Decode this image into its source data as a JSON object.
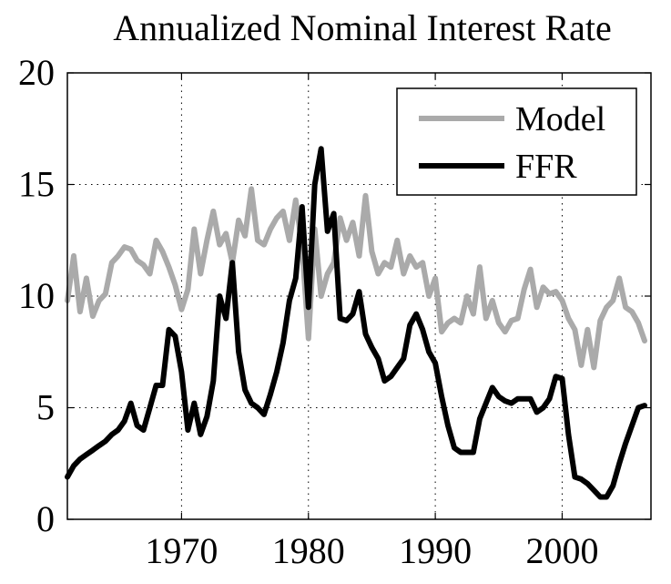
{
  "chart_data": {
    "type": "line",
    "title": "Annualized Nominal Interest Rate",
    "xlabel": "",
    "ylabel": "",
    "xlim": [
      1961,
      2007
    ],
    "ylim": [
      0,
      20
    ],
    "xticks": [
      1970,
      1980,
      1990,
      2000
    ],
    "yticks": [
      0,
      5,
      10,
      15,
      20
    ],
    "grid": true,
    "legend_position": "top-right",
    "series": [
      {
        "name": "Model",
        "color": "#aaaaaa",
        "x": [
          1961.0,
          1961.5,
          1962.0,
          1962.5,
          1963.0,
          1963.5,
          1964.0,
          1964.5,
          1965.0,
          1965.5,
          1966.0,
          1966.5,
          1967.0,
          1967.5,
          1968.0,
          1968.5,
          1969.0,
          1969.5,
          1970.0,
          1970.5,
          1971.0,
          1971.5,
          1972.0,
          1972.5,
          1973.0,
          1973.5,
          1974.0,
          1974.5,
          1975.0,
          1975.5,
          1976.0,
          1976.5,
          1977.0,
          1977.5,
          1978.0,
          1978.5,
          1979.0,
          1979.5,
          1980.0,
          1980.5,
          1981.0,
          1981.5,
          1982.0,
          1982.5,
          1983.0,
          1983.5,
          1984.0,
          1984.5,
          1985.0,
          1985.5,
          1986.0,
          1986.5,
          1987.0,
          1987.5,
          1988.0,
          1988.5,
          1989.0,
          1989.5,
          1990.0,
          1990.5,
          1991.0,
          1991.5,
          1992.0,
          1992.5,
          1993.0,
          1993.5,
          1994.0,
          1994.5,
          1995.0,
          1995.5,
          1996.0,
          1996.5,
          1997.0,
          1997.5,
          1998.0,
          1998.5,
          1999.0,
          1999.5,
          2000.0,
          2000.5,
          2001.0,
          2001.5,
          2002.0,
          2002.5,
          2003.0,
          2003.5,
          2004.0,
          2004.5,
          2005.0,
          2005.5,
          2006.0,
          2006.5
        ],
        "y": [
          9.8,
          11.8,
          9.3,
          10.8,
          9.1,
          9.8,
          10.1,
          11.5,
          11.8,
          12.2,
          12.1,
          11.6,
          11.4,
          11.0,
          12.5,
          12.0,
          11.3,
          10.5,
          9.4,
          10.3,
          13.0,
          11.0,
          12.5,
          13.8,
          12.3,
          12.8,
          11.5,
          13.4,
          12.7,
          14.8,
          12.5,
          12.3,
          13.0,
          13.5,
          13.8,
          12.5,
          14.3,
          12.2,
          8.1,
          13.0,
          10.0,
          11.0,
          11.5,
          13.5,
          12.5,
          13.3,
          11.8,
          14.5,
          12.0,
          11.0,
          11.5,
          11.3,
          12.5,
          11.0,
          11.8,
          11.3,
          11.5,
          10.0,
          10.8,
          8.4,
          8.8,
          9.0,
          8.8,
          10.0,
          9.2,
          11.3,
          9.0,
          9.8,
          8.8,
          8.4,
          8.9,
          9.0,
          10.3,
          11.2,
          9.5,
          10.4,
          10.1,
          10.2,
          9.8,
          9.0,
          8.5,
          6.9,
          8.5,
          6.8,
          8.9,
          9.5,
          9.8,
          10.8,
          9.5,
          9.3,
          8.8,
          8.0
        ]
      },
      {
        "name": "FFR",
        "color": "#000000",
        "x": [
          1961.0,
          1961.5,
          1962.0,
          1962.5,
          1963.0,
          1963.5,
          1964.0,
          1964.5,
          1965.0,
          1965.5,
          1966.0,
          1966.5,
          1967.0,
          1967.5,
          1968.0,
          1968.5,
          1969.0,
          1969.5,
          1970.0,
          1970.5,
          1971.0,
          1971.5,
          1972.0,
          1972.5,
          1973.0,
          1973.5,
          1974.0,
          1974.5,
          1975.0,
          1975.5,
          1976.0,
          1976.5,
          1977.0,
          1977.5,
          1978.0,
          1978.5,
          1979.0,
          1979.5,
          1980.0,
          1980.5,
          1981.0,
          1981.5,
          1982.0,
          1982.5,
          1983.0,
          1983.5,
          1984.0,
          1984.5,
          1985.0,
          1985.5,
          1986.0,
          1986.5,
          1987.0,
          1987.5,
          1988.0,
          1988.5,
          1989.0,
          1989.5,
          1990.0,
          1990.5,
          1991.0,
          1991.5,
          1992.0,
          1992.5,
          1993.0,
          1993.5,
          1994.0,
          1994.5,
          1995.0,
          1995.5,
          1996.0,
          1996.5,
          1997.0,
          1997.5,
          1998.0,
          1998.5,
          1999.0,
          1999.5,
          2000.0,
          2000.5,
          2001.0,
          2001.5,
          2002.0,
          2002.5,
          2003.0,
          2003.5,
          2004.0,
          2004.5,
          2005.0,
          2005.5,
          2006.0,
          2006.5
        ],
        "y": [
          1.9,
          2.4,
          2.7,
          2.9,
          3.1,
          3.3,
          3.5,
          3.8,
          4.0,
          4.4,
          5.2,
          4.2,
          4.0,
          5.0,
          6.0,
          6.0,
          8.5,
          8.2,
          6.6,
          4.0,
          5.2,
          3.8,
          4.6,
          6.2,
          10.0,
          9.0,
          11.5,
          7.5,
          5.8,
          5.2,
          5.0,
          4.7,
          5.6,
          6.6,
          7.9,
          9.8,
          10.8,
          14.0,
          9.5,
          15.0,
          16.6,
          12.9,
          13.7,
          9.0,
          8.9,
          9.2,
          10.2,
          8.3,
          7.7,
          7.2,
          6.2,
          6.4,
          6.8,
          7.2,
          8.7,
          9.2,
          8.5,
          7.5,
          7.0,
          5.5,
          4.2,
          3.2,
          3.0,
          3.0,
          3.0,
          4.5,
          5.2,
          5.9,
          5.5,
          5.3,
          5.2,
          5.4,
          5.4,
          5.4,
          4.8,
          5.0,
          5.4,
          6.4,
          6.3,
          3.8,
          1.9,
          1.8,
          1.6,
          1.3,
          1.0,
          1.0,
          1.5,
          2.5,
          3.4,
          4.2,
          5.0,
          5.1
        ]
      }
    ]
  }
}
